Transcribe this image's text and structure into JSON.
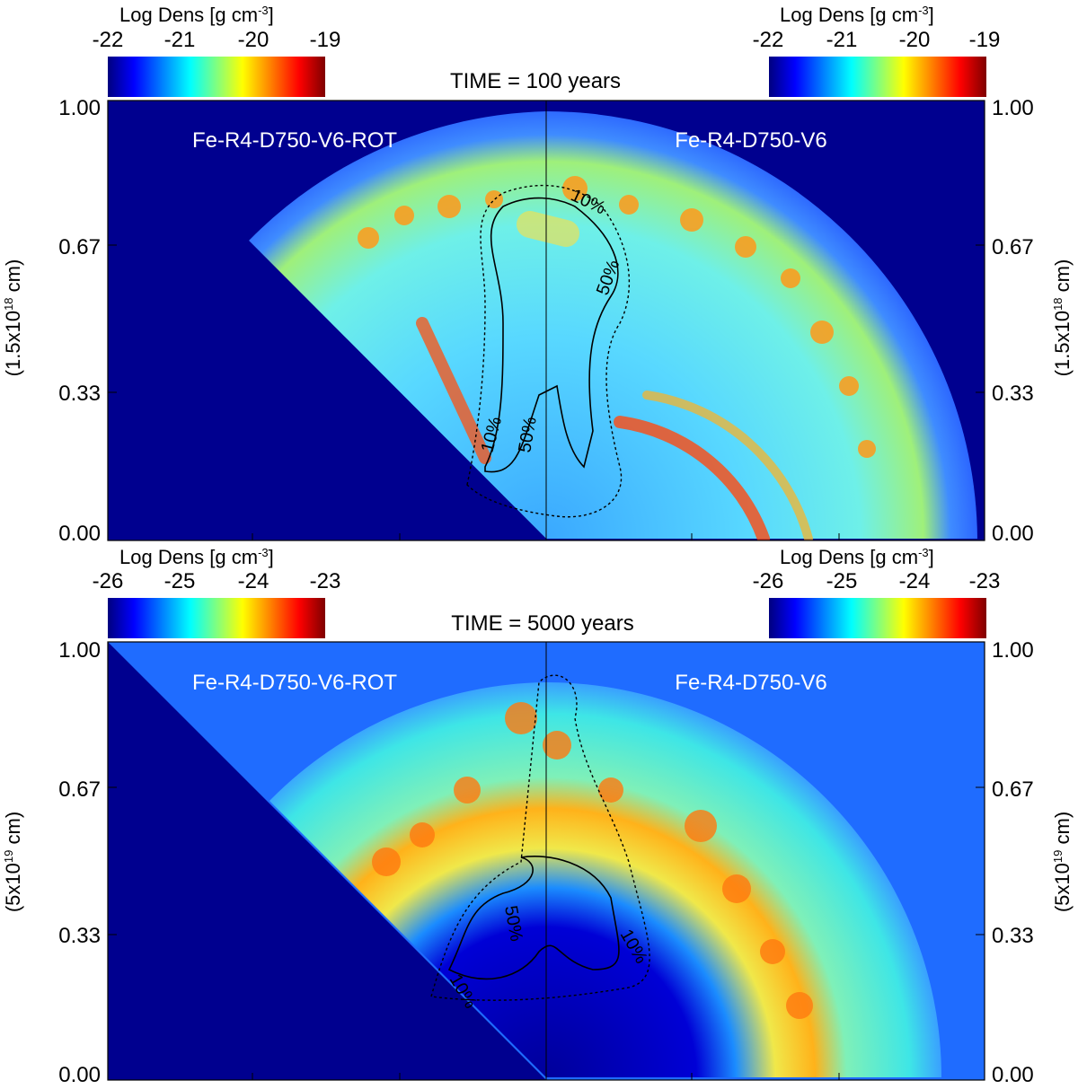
{
  "colormap_stops": [
    "#00007f",
    "#0000ff",
    "#00ffff",
    "#ffff00",
    "#ff0000",
    "#7f0000"
  ],
  "panels": [
    {
      "time_label": "TIME = 100 years",
      "left_run": "Fe-R4-D750-V6-ROT",
      "right_run": "Fe-R4-D750-V6",
      "colorbar_title_left": "Log Dens [g cm",
      "colorbar_title_right": "Log Dens [g cm",
      "colorbar_exponent": "-3",
      "colorbar_title_close": "]",
      "colorbar_ticks": [
        "-22",
        "-21",
        "-20",
        "-19"
      ],
      "y_ticks": [
        "1.00",
        "0.67",
        "0.33",
        "0.00"
      ],
      "y_axis_label_prefix": "(1.5x10",
      "y_axis_label_exp": "18",
      "y_axis_label_suffix": " cm)",
      "contour_labels": [
        "10%",
        "50%",
        "10%",
        "50%"
      ]
    },
    {
      "time_label": "TIME = 5000 years",
      "left_run": "Fe-R4-D750-V6-ROT",
      "right_run": "Fe-R4-D750-V6",
      "colorbar_title_left": "Log Dens [g cm",
      "colorbar_title_right": "Log Dens [g cm",
      "colorbar_exponent": "-3",
      "colorbar_title_close": "]",
      "colorbar_ticks": [
        "-26",
        "-25",
        "-24",
        "-23"
      ],
      "y_ticks": [
        "1.00",
        "0.67",
        "0.33",
        "0.00"
      ],
      "y_axis_label_prefix": "(5x10",
      "y_axis_label_exp": "19",
      "y_axis_label_suffix": " cm)",
      "contour_labels": [
        "50%",
        "10%",
        "10%"
      ]
    }
  ]
}
